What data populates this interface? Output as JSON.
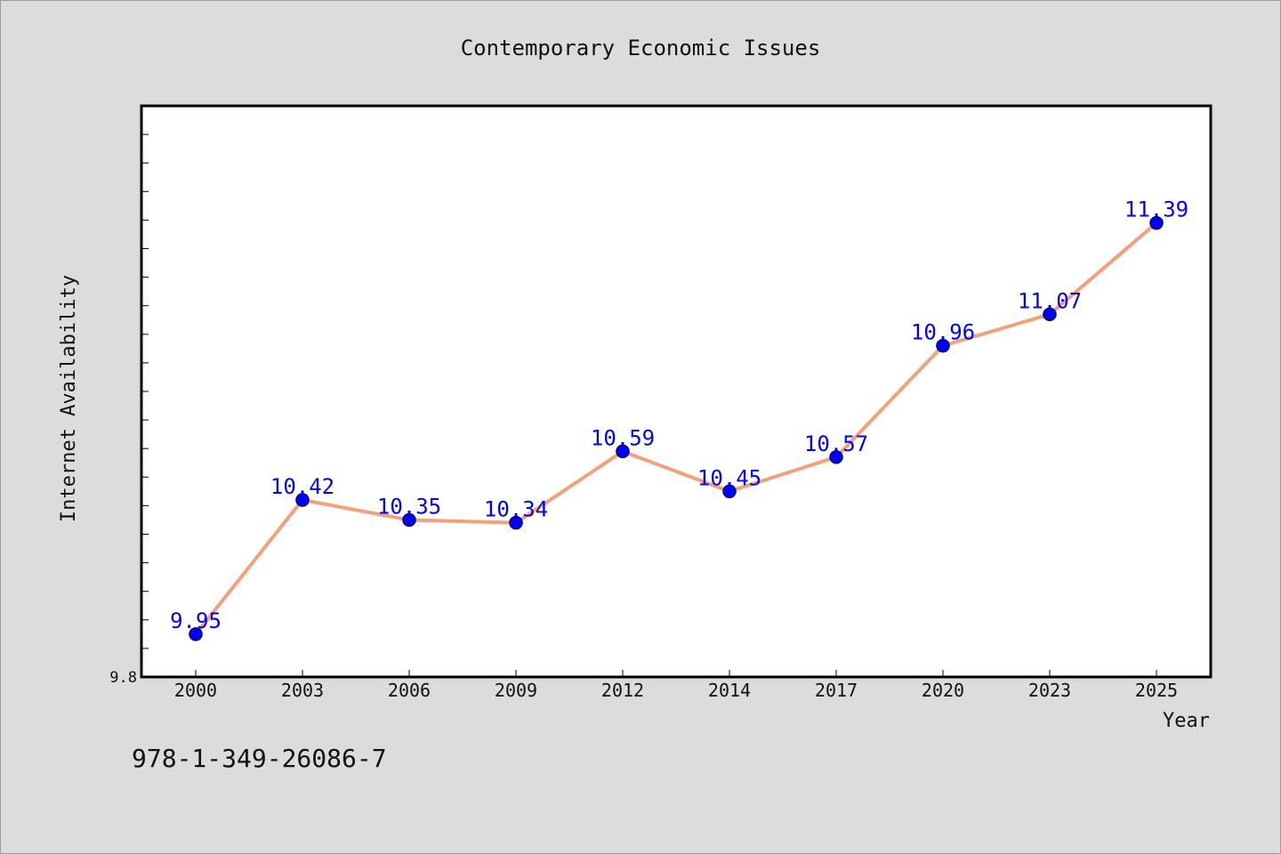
{
  "isbn": "978-1-349-26086-7",
  "chart_data": {
    "type": "line",
    "title": "Contemporary Economic Issues",
    "xlabel": "Year",
    "ylabel": "Internet Availability",
    "categories": [
      "2000",
      "2003",
      "2006",
      "2009",
      "2012",
      "2014",
      "2017",
      "2020",
      "2023",
      "2025"
    ],
    "series": [
      {
        "values": [
          9.95,
          10.42,
          10.35,
          10.34,
          10.59,
          10.45,
          10.57,
          10.96,
          11.07,
          11.39
        ],
        "labels": [
          "9.95",
          "10.42",
          "10.35",
          "10.34",
          "10.59",
          "10.45",
          "10.57",
          "10.96",
          "11.07",
          "11.39"
        ]
      }
    ],
    "ylim": [
      9.8,
      11.8
    ],
    "y_tick_labels": [
      {
        "value": 9.8,
        "label": "9.8"
      }
    ],
    "y_minor_tick_step": 0.1,
    "grid": false,
    "legend": false,
    "colors": {
      "line": "#f4a07a",
      "marker": "#0000ff",
      "label": "#0000ff",
      "plot_background": "#ffffff",
      "page_background": "#dcdcdc"
    }
  }
}
